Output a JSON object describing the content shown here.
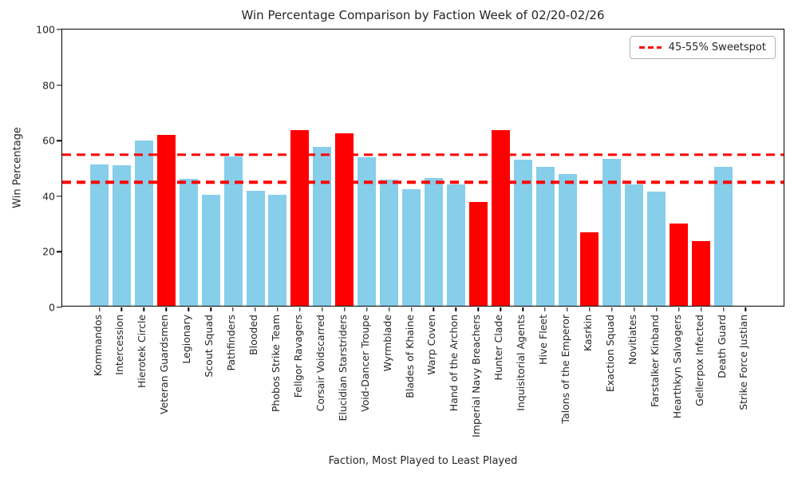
{
  "chart_data": {
    "type": "bar",
    "title": "Win Percentage Comparison by Faction Week of 02/20-02/26",
    "xlabel": "Faction, Most Played to Least Played",
    "ylabel": "Win Percentage",
    "ylim": [
      0,
      100
    ],
    "yticks": [
      0,
      20,
      40,
      60,
      80,
      100
    ],
    "grid": false,
    "legend_position": "upper right",
    "legend_label": "45-55% Sweetspot",
    "reference_lines": [
      {
        "value": 45,
        "style": "dashed",
        "color": "#ff0000"
      },
      {
        "value": 55,
        "style": "dashed",
        "color": "#ff0000"
      }
    ],
    "colors": {
      "normal": "#87ceeb",
      "outlier": "#ff0000"
    },
    "categories": [
      "Kommandos",
      "Intercession",
      "Hierotek Circle",
      "Veteran Guardsmen",
      "Legionary",
      "Scout Squad",
      "Pathfinders",
      "Blooded",
      "Phobos Strike Team",
      "Fellgor Ravagers",
      "Corsair Voidscarred",
      "Elucidian Starstriders",
      "Void-Dancer Troupe",
      "Wyrmblade",
      "Blades of Khaine",
      "Warp Coven",
      "Hand of the Archon",
      "Imperial Navy Breachers",
      "Hunter Clade",
      "Inquisitorial Agents",
      "Hive Fleet",
      "Talons of the Emperor",
      "Kasrkin",
      "Exaction Squad",
      "Novitiates",
      "Farstalker Kinband",
      "Hearthkyn Salvagers",
      "Gellerpox Infected",
      "Death Guard",
      "Strike Force Justian"
    ],
    "values": [
      51.0,
      50.6,
      59.4,
      61.4,
      45.7,
      40.0,
      53.8,
      41.3,
      40.0,
      63.3,
      57.1,
      62.0,
      53.4,
      45.5,
      41.9,
      45.9,
      43.7,
      37.5,
      63.2,
      52.5,
      50.0,
      47.4,
      26.4,
      52.9,
      43.8,
      41.0,
      29.5,
      23.4,
      50.0,
      0.0
    ],
    "bar_colors": [
      "#87ceeb",
      "#87ceeb",
      "#87ceeb",
      "#ff0000",
      "#87ceeb",
      "#87ceeb",
      "#87ceeb",
      "#87ceeb",
      "#87ceeb",
      "#ff0000",
      "#87ceeb",
      "#ff0000",
      "#87ceeb",
      "#87ceeb",
      "#87ceeb",
      "#87ceeb",
      "#87ceeb",
      "#ff0000",
      "#ff0000",
      "#87ceeb",
      "#87ceeb",
      "#87ceeb",
      "#ff0000",
      "#87ceeb",
      "#87ceeb",
      "#87ceeb",
      "#ff0000",
      "#ff0000",
      "#87ceeb",
      "#ff0000"
    ]
  }
}
